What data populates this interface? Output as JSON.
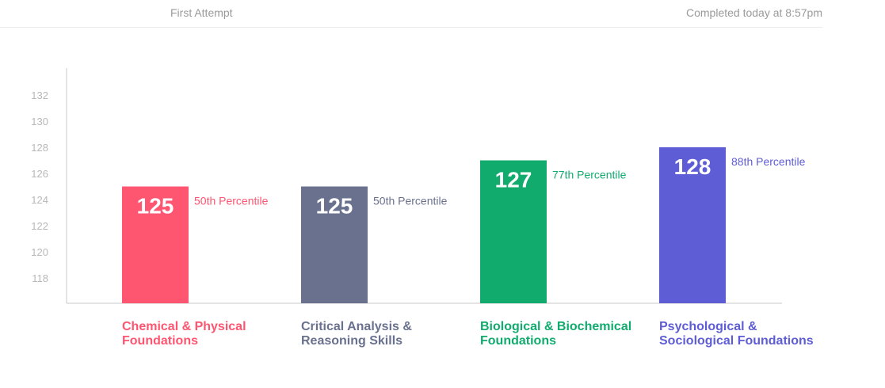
{
  "header": {
    "attempt": "First Attempt",
    "completed": "Completed today at 8:57pm"
  },
  "chart_data": {
    "type": "bar",
    "categories": [
      [
        "Chemical & Physical",
        "Foundations"
      ],
      [
        "Critical Analysis &",
        "Reasoning Skills"
      ],
      [
        "Biological & Biochemical",
        "Foundations"
      ],
      [
        "Psychological &",
        "Sociological Foundations"
      ]
    ],
    "values": [
      125,
      125,
      127,
      128
    ],
    "value_labels": [
      "125",
      "125",
      "127",
      "128"
    ],
    "percentile_labels": [
      "50th Percentile",
      "50th Percentile",
      "77th Percentile",
      "88th Percentile"
    ],
    "colors": [
      "#fe5570",
      "#69718f",
      "#12ab6e",
      "#5f5dd5"
    ],
    "yticks": [
      118,
      120,
      122,
      124,
      126,
      128,
      130,
      132
    ],
    "ylim": [
      116,
      134
    ],
    "grid": false
  }
}
